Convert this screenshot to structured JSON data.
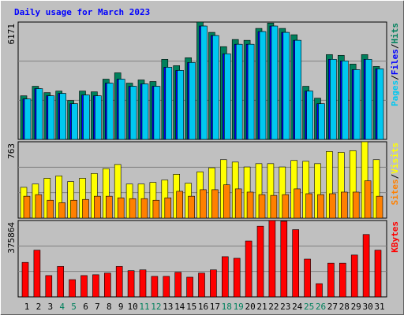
{
  "chart_data": [
    {
      "type": "bar",
      "title": "Daily usage for March 2023",
      "ylim": [
        0,
        6171
      ],
      "yticks": [
        6171
      ],
      "legend_separator": "/",
      "series": [
        {
          "name": "Hits",
          "color": "#00805C",
          "values": [
            2293,
            2794,
            2460,
            2543,
            2043,
            2543,
            2502,
            3169,
            3502,
            2960,
            3127,
            3044,
            4211,
            3878,
            4295,
            6171,
            5629,
            4878,
            5254,
            5212,
            5837,
            6120,
            5837,
            5504,
            2794,
            2168,
            4461,
            4420,
            3961,
            4461,
            3836
          ]
        },
        {
          "name": "Files",
          "color": "#0000FF",
          "values": [
            2126,
            2669,
            2293,
            2418,
            1876,
            2335,
            2293,
            2960,
            3169,
            2794,
            2919,
            2794,
            3794,
            3627,
            4044,
            5962,
            5462,
            4503,
            5003,
            5003,
            5671,
            5962,
            5629,
            5212,
            2543,
            1876,
            4211,
            4128,
            3669,
            4211,
            3711
          ]
        },
        {
          "name": "Pages",
          "color": "#00C8F0",
          "values": [
            2126,
            2669,
            2293,
            2418,
            1876,
            2335,
            2293,
            2960,
            3169,
            2794,
            2919,
            2794,
            3794,
            3627,
            4044,
            5962,
            5462,
            4503,
            5003,
            5003,
            5671,
            5962,
            5629,
            5212,
            2543,
            1876,
            4211,
            4128,
            3669,
            4211,
            3711
          ]
        }
      ]
    },
    {
      "type": "bar",
      "ylim": [
        0,
        763
      ],
      "yticks": [
        763
      ],
      "legend_separator": "/",
      "series": [
        {
          "name": "Visits",
          "color": "#FFFF00",
          "values": [
            308,
            341,
            398,
            422,
            365,
            398,
            446,
            495,
            536,
            341,
            341,
            357,
            381,
            438,
            349,
            463,
            503,
            584,
            560,
            511,
            544,
            544,
            511,
            576,
            568,
            544,
            666,
            657,
            674,
            763,
            584
          ]
        },
        {
          "name": "Sites",
          "color": "#FF8000",
          "values": [
            219,
            235,
            179,
            154,
            179,
            187,
            219,
            219,
            203,
            195,
            195,
            179,
            203,
            268,
            219,
            284,
            284,
            333,
            292,
            260,
            235,
            227,
            235,
            292,
            244,
            235,
            244,
            260,
            260,
            373,
            219
          ]
        }
      ]
    },
    {
      "type": "bar",
      "ylim": [
        0,
        375864
      ],
      "yticks": [
        375864
      ],
      "categories": [
        "1",
        "2",
        "3",
        "4",
        "5",
        "6",
        "7",
        "8",
        "9",
        "10",
        "11",
        "12",
        "13",
        "14",
        "15",
        "16",
        "17",
        "18",
        "19",
        "20",
        "21",
        "22",
        "23",
        "24",
        "25",
        "26",
        "27",
        "28",
        "29",
        "30",
        "31"
      ],
      "category_label_colors": [
        "#000000",
        "#000000",
        "#000000",
        "#00805C",
        "#00805C",
        "#000000",
        "#000000",
        "#000000",
        "#000000",
        "#000000",
        "#00805C",
        "#00805C",
        "#000000",
        "#000000",
        "#000000",
        "#000000",
        "#000000",
        "#00805C",
        "#00805C",
        "#000000",
        "#000000",
        "#000000",
        "#000000",
        "#000000",
        "#00805C",
        "#00805C",
        "#000000",
        "#000000",
        "#000000",
        "#000000",
        "#000000"
      ],
      "series": [
        {
          "name": "KBytes",
          "color": "#FF0000",
          "values": [
            169745,
            230000,
            105000,
            150000,
            85000,
            105000,
            109000,
            117000,
            150000,
            129000,
            133000,
            101000,
            101000,
            121000,
            97000,
            117000,
            133000,
            198000,
            190000,
            275000,
            348000,
            375864,
            372000,
            331000,
            186000,
            65000,
            166000,
            166000,
            206000,
            307000,
            230000
          ]
        }
      ]
    }
  ]
}
